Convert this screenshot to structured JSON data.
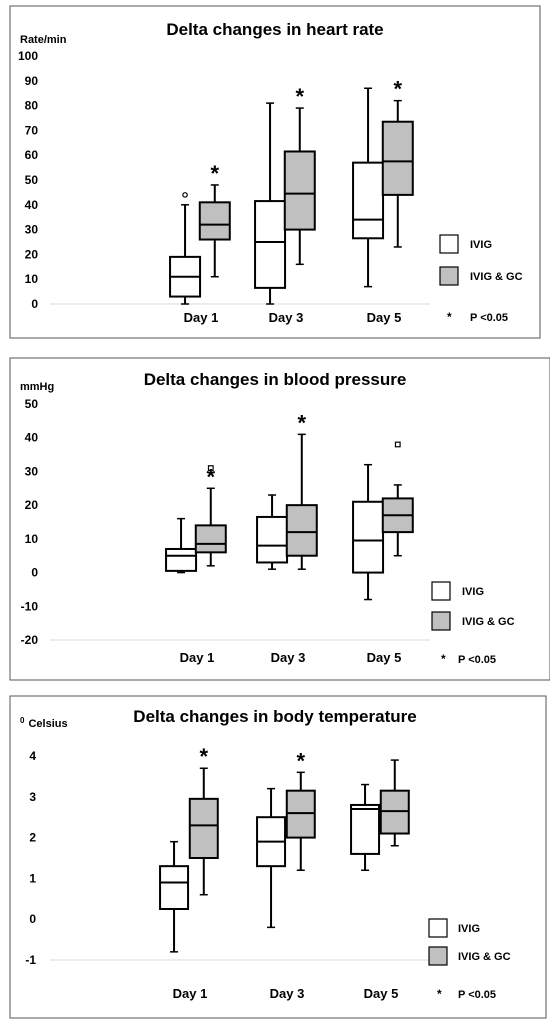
{
  "chart_data": [
    {
      "type": "box",
      "title": "Delta changes in heart rate",
      "ylabel": "Rate/min",
      "ylim": [
        0,
        100
      ],
      "yticks": [
        0,
        10,
        20,
        30,
        40,
        50,
        60,
        70,
        80,
        90,
        100
      ],
      "categories": [
        "Day 1",
        "Day 3",
        "Day 5"
      ],
      "grid": false,
      "legend_position": "bottom-right",
      "series": [
        {
          "name": "IVIG",
          "color": "#ffffff",
          "boxes": [
            {
              "whisker_low": 0,
              "q1": 3,
              "median": 11,
              "q3": 19,
              "whisker_high": 40,
              "outliers": [
                44
              ]
            },
            {
              "whisker_low": 0,
              "q1": 6.5,
              "median": 25,
              "q3": 41.5,
              "whisker_high": 81,
              "outliers": []
            },
            {
              "whisker_low": 7,
              "q1": 26.5,
              "median": 34,
              "q3": 57,
              "whisker_high": 87,
              "outliers": []
            }
          ]
        },
        {
          "name": "IVIG & GC",
          "color": "#c0c0c0",
          "boxes": [
            {
              "whisker_low": 11,
              "q1": 26,
              "median": 32,
              "q3": 41,
              "whisker_high": 48,
              "outliers": []
            },
            {
              "whisker_low": 16,
              "q1": 30,
              "median": 44.5,
              "q3": 61.5,
              "whisker_high": 79,
              "outliers": []
            },
            {
              "whisker_low": 23,
              "q1": 44,
              "median": 57.5,
              "q3": 73.5,
              "whisker_high": 82,
              "outliers": []
            }
          ]
        }
      ],
      "significant_categories": [
        "Day 1",
        "Day 3",
        "Day 5"
      ],
      "significance_marker": "*",
      "significance_note": "P <0.05"
    },
    {
      "type": "box",
      "title": "Delta changes in blood pressure",
      "ylabel": "mmHg",
      "ylim": [
        -20,
        50
      ],
      "yticks": [
        -20,
        -10,
        0,
        10,
        20,
        30,
        40,
        50
      ],
      "categories": [
        "Day 1",
        "Day 3",
        "Day 5"
      ],
      "grid": false,
      "legend_position": "bottom-right",
      "series": [
        {
          "name": "IVIG",
          "color": "#ffffff",
          "boxes": [
            {
              "whisker_low": 0,
              "q1": 0.5,
              "median": 5,
              "q3": 7,
              "whisker_high": 16,
              "outliers": []
            },
            {
              "whisker_low": 1,
              "q1": 3,
              "median": 8,
              "q3": 16.5,
              "whisker_high": 23,
              "outliers": []
            },
            {
              "whisker_low": -8,
              "q1": 0,
              "median": 9.5,
              "q3": 21,
              "whisker_high": 32,
              "outliers": []
            }
          ]
        },
        {
          "name": "IVIG & GC",
          "color": "#c0c0c0",
          "boxes": [
            {
              "whisker_low": 2,
              "q1": 6,
              "median": 8.5,
              "q3": 14,
              "whisker_high": 25,
              "outliers": [
                31
              ]
            },
            {
              "whisker_low": 1,
              "q1": 5,
              "median": 12,
              "q3": 20,
              "whisker_high": 41,
              "outliers": []
            },
            {
              "whisker_low": 5,
              "q1": 12,
              "median": 17,
              "q3": 22,
              "whisker_high": 26,
              "outliers": [
                38
              ]
            }
          ]
        }
      ],
      "significant_categories": [
        "Day 1",
        "Day 3"
      ],
      "significance_marker": "*",
      "significance_note": "P <0.05"
    },
    {
      "type": "box",
      "title": "Delta changes in body temperature",
      "ylabel_sup": "0",
      "ylabel": "Celsius",
      "ylim": [
        -1,
        4
      ],
      "yticks": [
        -1,
        0,
        1,
        2,
        3,
        4
      ],
      "categories": [
        "Day 1",
        "Day 3",
        "Day 5"
      ],
      "grid": false,
      "legend_position": "bottom-right",
      "series": [
        {
          "name": "IVIG",
          "color": "#ffffff",
          "boxes": [
            {
              "whisker_low": -0.8,
              "q1": 0.25,
              "median": 0.9,
              "q3": 1.3,
              "whisker_high": 1.9,
              "outliers": []
            },
            {
              "whisker_low": -0.2,
              "q1": 1.3,
              "median": 1.9,
              "q3": 2.5,
              "whisker_high": 3.2,
              "outliers": []
            },
            {
              "whisker_low": 1.2,
              "q1": 1.6,
              "median": 2.7,
              "q3": 2.8,
              "whisker_high": 3.3,
              "outliers": []
            }
          ]
        },
        {
          "name": "IVIG & GC",
          "color": "#c0c0c0",
          "boxes": [
            {
              "whisker_low": 0.6,
              "q1": 1.5,
              "median": 2.3,
              "q3": 2.95,
              "whisker_high": 3.7,
              "outliers": []
            },
            {
              "whisker_low": 1.2,
              "q1": 2.0,
              "median": 2.6,
              "q3": 3.15,
              "whisker_high": 3.6,
              "outliers": []
            },
            {
              "whisker_low": 1.8,
              "q1": 2.1,
              "median": 2.65,
              "q3": 3.15,
              "whisker_high": 3.9,
              "outliers": []
            }
          ]
        }
      ],
      "significant_categories": [
        "Day 1",
        "Day 3"
      ],
      "significance_marker": "*",
      "significance_note": "P <0.05"
    }
  ]
}
